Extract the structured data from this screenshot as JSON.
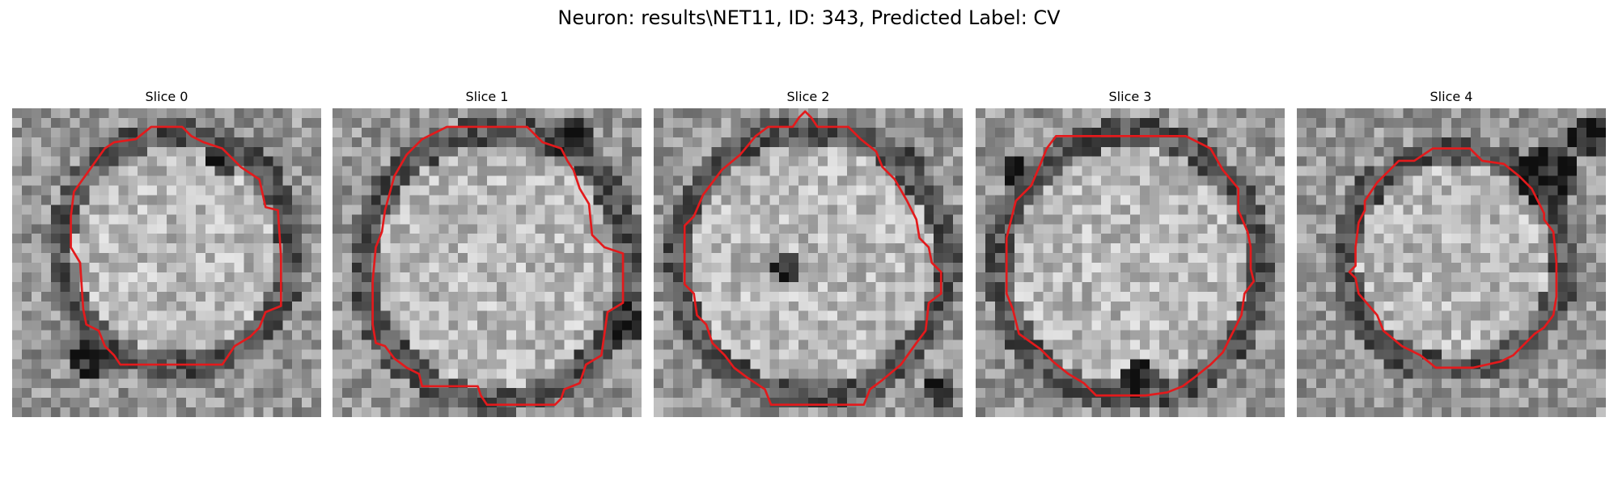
{
  "figure": {
    "title": "Neuron: results\\NET11, ID: 343, Predicted Label: CV"
  },
  "contour_color": "#e31a1c",
  "colormap": "gray",
  "panels": [
    {
      "title": "Slice 0",
      "contour": [
        [
          0.45,
          0.06
        ],
        [
          0.55,
          0.06
        ],
        [
          0.58,
          0.09
        ],
        [
          0.62,
          0.11
        ],
        [
          0.68,
          0.13
        ],
        [
          0.74,
          0.19
        ],
        [
          0.8,
          0.23
        ],
        [
          0.82,
          0.32
        ],
        [
          0.86,
          0.33
        ],
        [
          0.87,
          0.48
        ],
        [
          0.87,
          0.64
        ],
        [
          0.82,
          0.66
        ],
        [
          0.8,
          0.71
        ],
        [
          0.77,
          0.74
        ],
        [
          0.72,
          0.77
        ],
        [
          0.7,
          0.8
        ],
        [
          0.68,
          0.83
        ],
        [
          0.35,
          0.83
        ],
        [
          0.33,
          0.8
        ],
        [
          0.3,
          0.77
        ],
        [
          0.28,
          0.72
        ],
        [
          0.24,
          0.7
        ],
        [
          0.23,
          0.65
        ],
        [
          0.22,
          0.5
        ],
        [
          0.19,
          0.45
        ],
        [
          0.19,
          0.35
        ],
        [
          0.2,
          0.27
        ],
        [
          0.25,
          0.2
        ],
        [
          0.3,
          0.13
        ],
        [
          0.33,
          0.11
        ],
        [
          0.4,
          0.1
        ]
      ]
    },
    {
      "title": "Slice 1",
      "contour": [
        [
          0.37,
          0.06
        ],
        [
          0.63,
          0.06
        ],
        [
          0.68,
          0.11
        ],
        [
          0.74,
          0.13
        ],
        [
          0.76,
          0.17
        ],
        [
          0.78,
          0.2
        ],
        [
          0.8,
          0.26
        ],
        [
          0.83,
          0.31
        ],
        [
          0.84,
          0.41
        ],
        [
          0.88,
          0.45
        ],
        [
          0.94,
          0.47
        ],
        [
          0.94,
          0.63
        ],
        [
          0.89,
          0.66
        ],
        [
          0.87,
          0.8
        ],
        [
          0.82,
          0.83
        ],
        [
          0.8,
          0.89
        ],
        [
          0.75,
          0.91
        ],
        [
          0.74,
          0.94
        ],
        [
          0.72,
          0.96
        ],
        [
          0.5,
          0.96
        ],
        [
          0.48,
          0.93
        ],
        [
          0.47,
          0.9
        ],
        [
          0.29,
          0.9
        ],
        [
          0.28,
          0.86
        ],
        [
          0.24,
          0.84
        ],
        [
          0.2,
          0.81
        ],
        [
          0.17,
          0.77
        ],
        [
          0.14,
          0.76
        ],
        [
          0.13,
          0.7
        ],
        [
          0.13,
          0.56
        ],
        [
          0.14,
          0.45
        ],
        [
          0.16,
          0.4
        ],
        [
          0.17,
          0.33
        ],
        [
          0.2,
          0.22
        ],
        [
          0.24,
          0.15
        ],
        [
          0.29,
          0.1
        ],
        [
          0.33,
          0.08
        ]
      ]
    },
    {
      "title": "Slice 2",
      "contour": [
        [
          0.44,
          0.06
        ],
        [
          0.45,
          0.06
        ],
        [
          0.47,
          0.03
        ],
        [
          0.49,
          0.01
        ],
        [
          0.51,
          0.03
        ],
        [
          0.53,
          0.06
        ],
        [
          0.63,
          0.06
        ],
        [
          0.67,
          0.1
        ],
        [
          0.72,
          0.14
        ],
        [
          0.74,
          0.19
        ],
        [
          0.78,
          0.23
        ],
        [
          0.82,
          0.3
        ],
        [
          0.85,
          0.36
        ],
        [
          0.86,
          0.42
        ],
        [
          0.89,
          0.45
        ],
        [
          0.9,
          0.5
        ],
        [
          0.93,
          0.53
        ],
        [
          0.93,
          0.6
        ],
        [
          0.89,
          0.63
        ],
        [
          0.88,
          0.72
        ],
        [
          0.85,
          0.76
        ],
        [
          0.8,
          0.83
        ],
        [
          0.74,
          0.88
        ],
        [
          0.7,
          0.91
        ],
        [
          0.68,
          0.96
        ],
        [
          0.38,
          0.96
        ],
        [
          0.36,
          0.91
        ],
        [
          0.33,
          0.89
        ],
        [
          0.3,
          0.87
        ],
        [
          0.26,
          0.84
        ],
        [
          0.23,
          0.8
        ],
        [
          0.19,
          0.76
        ],
        [
          0.17,
          0.7
        ],
        [
          0.14,
          0.67
        ],
        [
          0.13,
          0.6
        ],
        [
          0.1,
          0.57
        ],
        [
          0.1,
          0.38
        ],
        [
          0.13,
          0.35
        ],
        [
          0.16,
          0.28
        ],
        [
          0.22,
          0.2
        ],
        [
          0.28,
          0.15
        ],
        [
          0.33,
          0.09
        ],
        [
          0.37,
          0.06
        ]
      ]
    },
    {
      "title": "Slice 3",
      "contour": [
        [
          0.26,
          0.09
        ],
        [
          0.68,
          0.09
        ],
        [
          0.76,
          0.13
        ],
        [
          0.8,
          0.2
        ],
        [
          0.85,
          0.26
        ],
        [
          0.85,
          0.33
        ],
        [
          0.88,
          0.4
        ],
        [
          0.89,
          0.45
        ],
        [
          0.89,
          0.52
        ],
        [
          0.9,
          0.56
        ],
        [
          0.87,
          0.6
        ],
        [
          0.86,
          0.67
        ],
        [
          0.82,
          0.75
        ],
        [
          0.8,
          0.79
        ],
        [
          0.76,
          0.83
        ],
        [
          0.71,
          0.87
        ],
        [
          0.67,
          0.9
        ],
        [
          0.62,
          0.92
        ],
        [
          0.55,
          0.93
        ],
        [
          0.39,
          0.93
        ],
        [
          0.35,
          0.89
        ],
        [
          0.3,
          0.86
        ],
        [
          0.25,
          0.82
        ],
        [
          0.21,
          0.78
        ],
        [
          0.14,
          0.73
        ],
        [
          0.12,
          0.65
        ],
        [
          0.1,
          0.6
        ],
        [
          0.1,
          0.42
        ],
        [
          0.13,
          0.3
        ],
        [
          0.18,
          0.25
        ],
        [
          0.21,
          0.18
        ],
        [
          0.23,
          0.13
        ]
      ]
    },
    {
      "title": "Slice 4",
      "contour": [
        [
          0.44,
          0.13
        ],
        [
          0.56,
          0.13
        ],
        [
          0.6,
          0.17
        ],
        [
          0.67,
          0.18
        ],
        [
          0.72,
          0.22
        ],
        [
          0.76,
          0.26
        ],
        [
          0.78,
          0.3
        ],
        [
          0.8,
          0.34
        ],
        [
          0.8,
          0.36
        ],
        [
          0.83,
          0.4
        ],
        [
          0.84,
          0.5
        ],
        [
          0.84,
          0.61
        ],
        [
          0.83,
          0.67
        ],
        [
          0.8,
          0.71
        ],
        [
          0.77,
          0.73
        ],
        [
          0.72,
          0.78
        ],
        [
          0.7,
          0.8
        ],
        [
          0.66,
          0.82
        ],
        [
          0.57,
          0.84
        ],
        [
          0.45,
          0.84
        ],
        [
          0.4,
          0.8
        ],
        [
          0.34,
          0.77
        ],
        [
          0.28,
          0.72
        ],
        [
          0.26,
          0.67
        ],
        [
          0.2,
          0.6
        ],
        [
          0.19,
          0.55
        ],
        [
          0.17,
          0.53
        ],
        [
          0.19,
          0.51
        ],
        [
          0.19,
          0.45
        ],
        [
          0.2,
          0.37
        ],
        [
          0.22,
          0.33
        ],
        [
          0.22,
          0.3
        ],
        [
          0.26,
          0.24
        ],
        [
          0.3,
          0.2
        ],
        [
          0.33,
          0.17
        ],
        [
          0.38,
          0.17
        ]
      ]
    }
  ]
}
